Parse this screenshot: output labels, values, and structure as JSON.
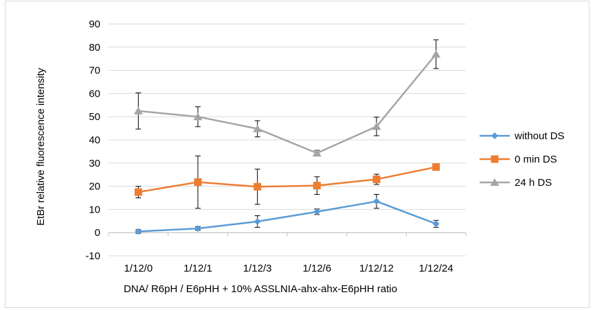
{
  "chart_data": {
    "type": "line",
    "title": "",
    "xlabel": "DNA/ R6pH / E6pHH + 10% ASSLNIA-ahx-ahx-E6pHH ratio",
    "ylabel": "EtBr relative fluorescence intensity",
    "ylim": [
      -10,
      90
    ],
    "yticks": [
      -10,
      0,
      10,
      20,
      30,
      40,
      50,
      60,
      70,
      80,
      90
    ],
    "categories": [
      "1/12/0",
      "1/12/1",
      "1/12/3",
      "1/12/6",
      "1/12/12",
      "1/12/24"
    ],
    "grid": true,
    "legend_position": "right",
    "series": [
      {
        "name": "without DS",
        "color": "#5B9BD5",
        "marker": "diamond",
        "values": [
          0.5,
          1.8,
          4.8,
          9.0,
          13.5,
          3.8
        ],
        "errors": [
          0.8,
          0.8,
          2.5,
          1.2,
          3.0,
          1.5
        ]
      },
      {
        "name": "0 min DS",
        "color": "#ED7D31",
        "marker": "square",
        "values": [
          17.5,
          21.8,
          19.8,
          20.3,
          23.0,
          28.3
        ],
        "errors": [
          2.5,
          11.3,
          7.6,
          3.8,
          2.2,
          0.8
        ]
      },
      {
        "name": "24 h DS",
        "color": "#A5A5A5",
        "marker": "triangle",
        "values": [
          52.5,
          50.0,
          44.8,
          34.3,
          45.8,
          77.0
        ],
        "errors": [
          7.8,
          4.3,
          3.5,
          1.2,
          4.0,
          6.2
        ]
      }
    ]
  }
}
